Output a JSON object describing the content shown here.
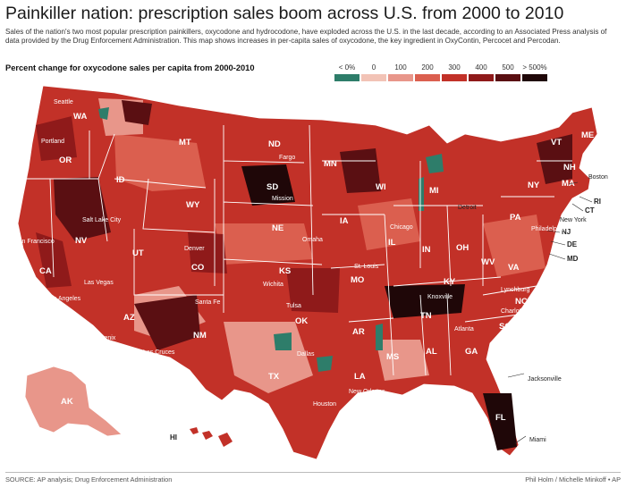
{
  "header": {
    "title": "Painkiller nation: prescription sales boom across U.S. from 2000 to 2010",
    "intro": "Sales of the nation's two most popular prescription painkillers, oxycodone and hydrocodone, have exploded across the U.S. in the last decade, according to an Associated Press analysis of data provided by the Drug Enforcement Administration. This map shows increases in per-capita sales of oxycodone, the key ingredient in OxyContin, Percocet and Percodan.",
    "subhead": "Percent change for oxycodone sales per capita from 2000-2010"
  },
  "legend": [
    {
      "label": "< 0%",
      "color": "#2e7d6a"
    },
    {
      "label": "0",
      "color": "#f2c3b6"
    },
    {
      "label": "100",
      "color": "#e8968a"
    },
    {
      "label": "200",
      "color": "#db5f4f"
    },
    {
      "label": "300",
      "color": "#c23128"
    },
    {
      "label": "400",
      "color": "#8f1a1a"
    },
    {
      "label": "500",
      "color": "#5a0f12"
    },
    {
      "label": "> 500%",
      "color": "#1f0708"
    }
  ],
  "states": {
    "WA": "WA",
    "OR": "OR",
    "CA": "CA",
    "NV": "NV",
    "ID": "ID",
    "MT": "MT",
    "WY": "WY",
    "UT": "UT",
    "CO": "CO",
    "AZ": "AZ",
    "NM": "NM",
    "ND": "ND",
    "SD": "SD",
    "NE": "NE",
    "KS": "KS",
    "OK": "OK",
    "TX": "TX",
    "MN": "MN",
    "IA": "IA",
    "MO": "MO",
    "AR": "AR",
    "LA": "LA",
    "WI": "WI",
    "IL": "IL",
    "MI": "MI",
    "IN": "IN",
    "OH": "OH",
    "KY": "KY",
    "TN": "TN",
    "MS": "MS",
    "AL": "AL",
    "GA": "GA",
    "FL": "FL",
    "SC": "SC",
    "NC": "NC",
    "VA": "VA",
    "WV": "WV",
    "PA": "PA",
    "NY": "NY",
    "VT": "VT",
    "NH": "NH",
    "ME": "ME",
    "MA": "MA",
    "CT": "CT",
    "RI": "RI",
    "NJ": "NJ",
    "DE": "DE",
    "MD": "MD",
    "AK": "AK",
    "HI": "HI"
  },
  "cities": {
    "seattle": "Seattle",
    "portland": "Portland",
    "san_francisco": "San Francisco",
    "los_angeles": "Los Angeles",
    "las_vegas": "Las Vegas",
    "salt_lake_city": "Salt Lake City",
    "denver": "Denver",
    "phoenix": "Phoenix",
    "santa_fe": "Santa Fe",
    "las_cruces": "Las Cruces",
    "fargo": "Fargo",
    "mission": "Mission",
    "omaha": "Omaha",
    "wichita": "Wichita",
    "tulsa": "Tulsa",
    "dallas": "Dallas",
    "houston": "Houston",
    "new_orleans": "New Orleans",
    "st_louis": "St. Louis",
    "chicago": "Chicago",
    "detroit": "Detroit",
    "knoxville": "Knoxville",
    "atlanta": "Atlanta",
    "charlotte": "Charlotte",
    "lynchburg": "Lynchburg",
    "philadelphia": "Philadelphia",
    "new_york": "New York",
    "boston": "Boston",
    "jacksonville": "Jacksonville",
    "miami": "Miami"
  },
  "footer": {
    "source": "SOURCE: AP analysis; Drug Enforcement Administration",
    "credit": "Phil Holm / Michelle Minkoff • AP"
  }
}
